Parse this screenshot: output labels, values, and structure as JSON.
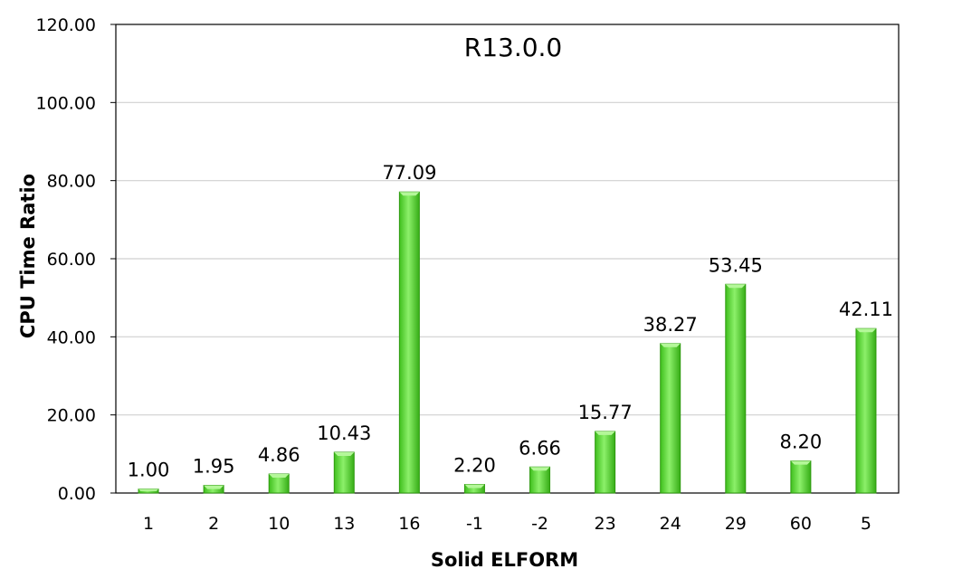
{
  "chart_data": {
    "type": "bar",
    "title": "R13.0.0",
    "xlabel": "Solid ELFORM",
    "ylabel": "CPU Time Ratio",
    "categories": [
      "1",
      "2",
      "10",
      "13",
      "16",
      "-1",
      "-2",
      "23",
      "24",
      "29",
      "60",
      "5"
    ],
    "values": [
      1.0,
      1.95,
      4.86,
      10.43,
      77.09,
      2.2,
      6.66,
      15.77,
      38.27,
      53.45,
      8.2,
      42.11
    ],
    "value_labels": [
      "1.00",
      "1.95",
      "4.86",
      "10.43",
      "77.09",
      "2.20",
      "6.66",
      "15.77",
      "38.27",
      "53.45",
      "8.20",
      "42.11"
    ],
    "ylim": [
      0,
      120
    ],
    "yticks": [
      "0.00",
      "20.00",
      "40.00",
      "60.00",
      "80.00",
      "100.00",
      "120.00"
    ],
    "grid": true,
    "legend": "none",
    "bar_color": "#5ee03a",
    "bar_edge_color": "#2f9a10"
  }
}
